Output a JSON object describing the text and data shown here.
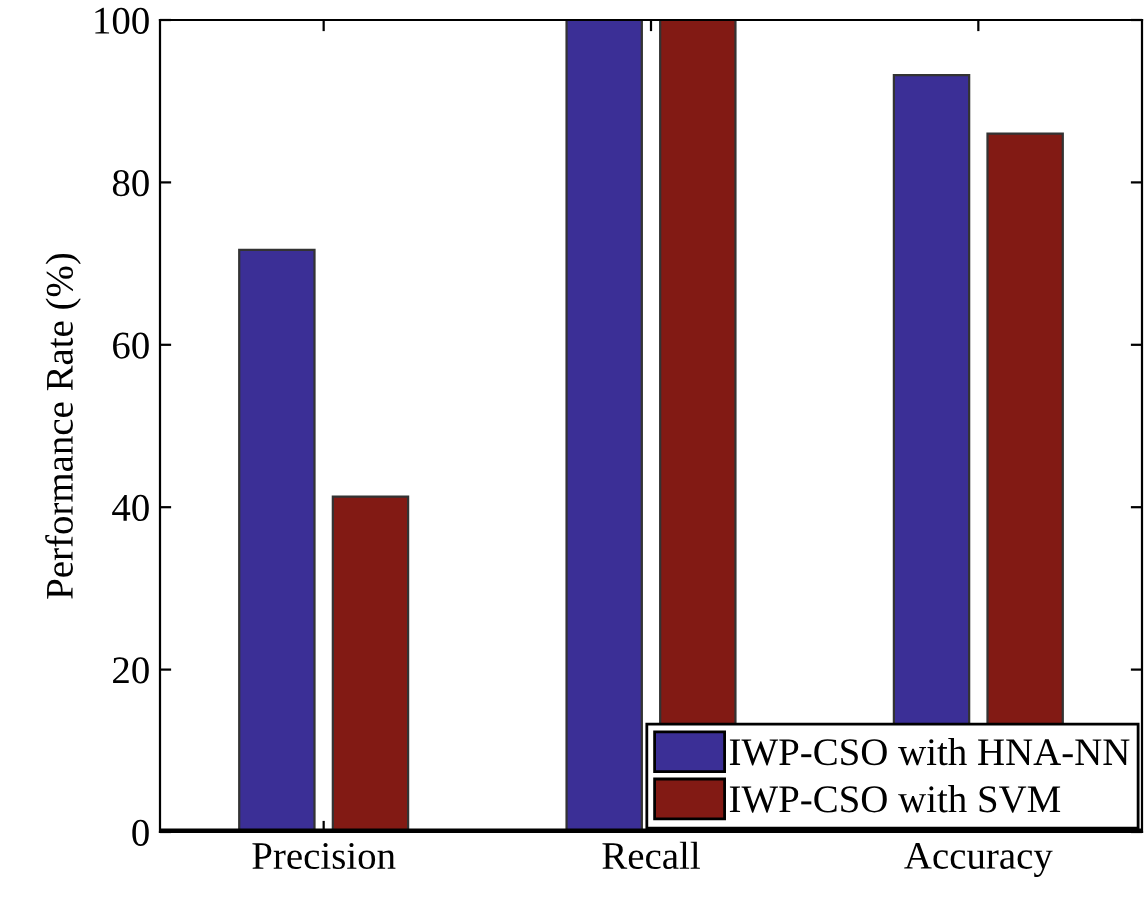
{
  "chart_data": {
    "type": "bar",
    "ylabel": "Performance Rate (%)",
    "categories": [
      "Precision",
      "Recall",
      "Accuracy"
    ],
    "series": [
      {
        "name": "IWP-CSO with HNA-NN",
        "color": "#3b2f96",
        "values": [
          71.7,
          100,
          93.2
        ]
      },
      {
        "name": "IWP-CSO with SVM",
        "color": "#821a14",
        "values": [
          41.3,
          100,
          86.0
        ]
      }
    ],
    "ylim": [
      0,
      100
    ],
    "yticks": [
      0,
      20,
      40,
      60,
      80,
      100
    ],
    "grid": false,
    "legend": "bottom right"
  }
}
